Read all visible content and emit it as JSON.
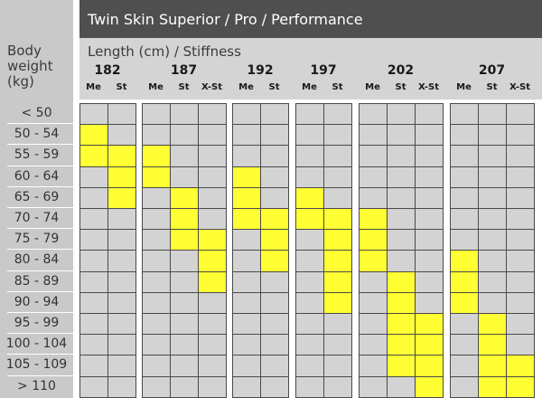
{
  "header": {
    "title": "Twin Skin Superior / Pro / Performance"
  },
  "subheader": {
    "label": "Length (cm) / Stiffness"
  },
  "body_weight": {
    "lines": [
      "Body",
      "weight",
      "(kg)"
    ]
  },
  "rows": [
    "< 50",
    "50 - 54",
    "55 - 59",
    "60 - 64",
    "65 - 69",
    "70 - 74",
    "75 - 79",
    "80 - 84",
    "85 - 89",
    "90 - 94",
    "95 - 99",
    "100 - 104",
    "105 - 109",
    "> 110"
  ],
  "groups": [
    {
      "length": "182",
      "stiffness": [
        "Me",
        "St"
      ]
    },
    {
      "length": "187",
      "stiffness": [
        "Me",
        "St",
        "X-St"
      ]
    },
    {
      "length": "192",
      "stiffness": [
        "Me",
        "St"
      ]
    },
    {
      "length": "197",
      "stiffness": [
        "Me",
        "St"
      ]
    },
    {
      "length": "202",
      "stiffness": [
        "Me",
        "St",
        "X-St"
      ]
    },
    {
      "length": "207",
      "stiffness": [
        "Me",
        "St",
        "X-St"
      ]
    }
  ],
  "highlight_color": "#ffff33",
  "recommended": [
    [
      1,
      0
    ],
    [
      2,
      0
    ],
    [
      2,
      1
    ],
    [
      3,
      1
    ],
    [
      4,
      1
    ],
    [
      2,
      2
    ],
    [
      3,
      2
    ],
    [
      4,
      3
    ],
    [
      5,
      3
    ],
    [
      6,
      3
    ],
    [
      6,
      4
    ],
    [
      7,
      4
    ],
    [
      8,
      4
    ],
    [
      3,
      5
    ],
    [
      4,
      5
    ],
    [
      5,
      5
    ],
    [
      5,
      6
    ],
    [
      6,
      6
    ],
    [
      7,
      6
    ],
    [
      4,
      7
    ],
    [
      5,
      7
    ],
    [
      5,
      8
    ],
    [
      6,
      8
    ],
    [
      7,
      8
    ],
    [
      8,
      8
    ],
    [
      9,
      8
    ],
    [
      5,
      9
    ],
    [
      6,
      9
    ],
    [
      7,
      9
    ],
    [
      8,
      10
    ],
    [
      9,
      10
    ],
    [
      10,
      10
    ],
    [
      11,
      10
    ],
    [
      12,
      10
    ],
    [
      10,
      11
    ],
    [
      11,
      11
    ],
    [
      12,
      11
    ],
    [
      13,
      11
    ],
    [
      7,
      12
    ],
    [
      8,
      12
    ],
    [
      9,
      12
    ],
    [
      10,
      13
    ],
    [
      11,
      13
    ],
    [
      12,
      13
    ],
    [
      13,
      13
    ],
    [
      12,
      14
    ],
    [
      13,
      14
    ]
  ]
}
